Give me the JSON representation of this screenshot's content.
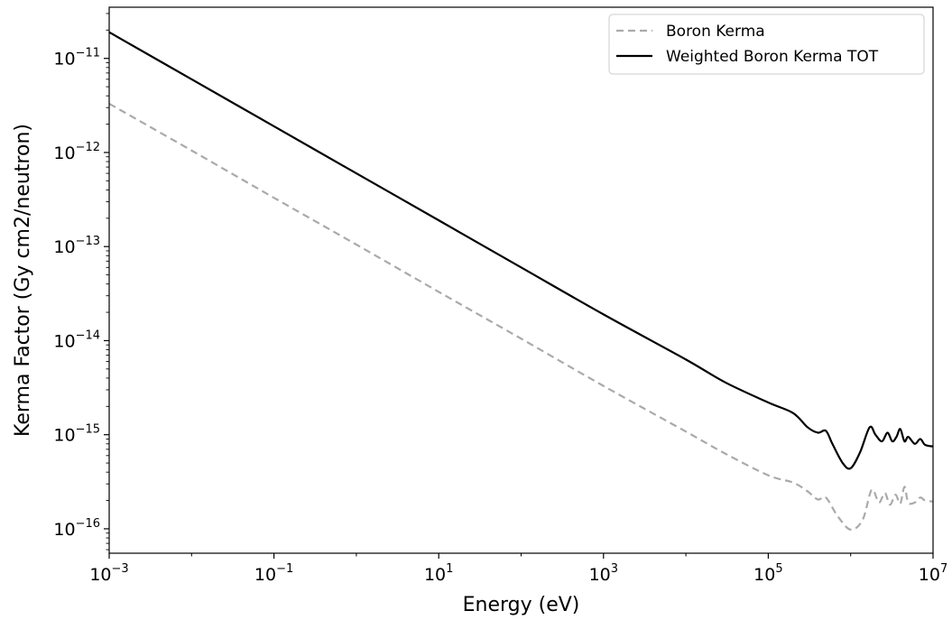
{
  "chart_data": {
    "type": "line",
    "title": "",
    "xlabel": "Energy (eV)",
    "ylabel": "Kerma Factor (Gy cm2/neutron)",
    "xscale": "log",
    "yscale": "log",
    "xlim": [
      0.001,
      10000000
    ],
    "ylim": [
      5.5e-17,
      3.5e-11
    ],
    "grid": false,
    "legend_position": "top-right",
    "x_ticks": [
      {
        "base": "10",
        "exp": "−3",
        "value": 0.001
      },
      {
        "base": "10",
        "exp": "−1",
        "value": 0.1
      },
      {
        "base": "10",
        "exp": "1",
        "value": 10
      },
      {
        "base": "10",
        "exp": "3",
        "value": 1000
      },
      {
        "base": "10",
        "exp": "5",
        "value": 100000
      },
      {
        "base": "10",
        "exp": "7",
        "value": 10000000
      }
    ],
    "y_ticks": [
      {
        "base": "10",
        "exp": "−11",
        "value": 1e-11
      },
      {
        "base": "10",
        "exp": "−12",
        "value": 1e-12
      },
      {
        "base": "10",
        "exp": "−13",
        "value": 1e-13
      },
      {
        "base": "10",
        "exp": "−14",
        "value": 1e-14
      },
      {
        "base": "10",
        "exp": "−15",
        "value": 1e-15
      },
      {
        "base": "10",
        "exp": "−16",
        "value": 1e-16
      }
    ],
    "series": [
      {
        "name": "Boron Kerma",
        "color": "#aaaaaa",
        "style": "dashed",
        "x": [
          0.001,
          0.01,
          0.1,
          1,
          10,
          100,
          1000,
          10000,
          30000,
          100000,
          200000,
          300000,
          400000,
          500000,
          700000,
          1000000,
          1400000,
          1800000,
          2200000,
          2600000,
          3000000,
          3500000,
          4000000,
          4500000,
          5000000,
          6000000,
          7000000,
          8000000,
          10000000
        ],
        "y": [
          3.3e-12,
          1.05e-12,
          3.3e-13,
          1.05e-13,
          3.3e-14,
          1.05e-14,
          3.3e-15,
          1.08e-15,
          6.3e-16,
          3.7e-16,
          3.1e-16,
          2.5e-16,
          2.05e-16,
          2.15e-16,
          1.35e-16,
          9.8e-17,
          1.25e-16,
          2.6e-16,
          1.9e-16,
          2.4e-16,
          1.8e-16,
          2.3e-16,
          1.85e-16,
          2.8e-16,
          1.9e-16,
          1.9e-16,
          2.15e-16,
          2e-16,
          1.95e-16
        ]
      },
      {
        "name": "Weighted Boron Kerma TOT",
        "color": "#000000",
        "style": "solid",
        "x": [
          0.001,
          0.01,
          0.1,
          1,
          10,
          100,
          1000,
          10000,
          30000,
          100000,
          200000,
          300000,
          400000,
          500000,
          600000,
          800000,
          1000000,
          1300000,
          1700000,
          2000000,
          2400000,
          2800000,
          3200000,
          3600000,
          4000000,
          4500000,
          5000000,
          6000000,
          7000000,
          8000000,
          10000000
        ],
        "y": [
          1.9e-11,
          6e-12,
          1.9e-12,
          6e-13,
          1.9e-13,
          6e-14,
          1.9e-14,
          6.3e-15,
          3.6e-15,
          2.2e-15,
          1.7e-15,
          1.2e-15,
          1.05e-15,
          1.1e-15,
          8e-16,
          5e-16,
          4.4e-16,
          6.5e-16,
          1.2e-15,
          1e-15,
          8.5e-16,
          1.05e-15,
          8.5e-16,
          9.5e-16,
          1.15e-15,
          8.5e-16,
          9.5e-16,
          8e-16,
          9e-16,
          7.8e-16,
          7.5e-16
        ]
      }
    ]
  }
}
